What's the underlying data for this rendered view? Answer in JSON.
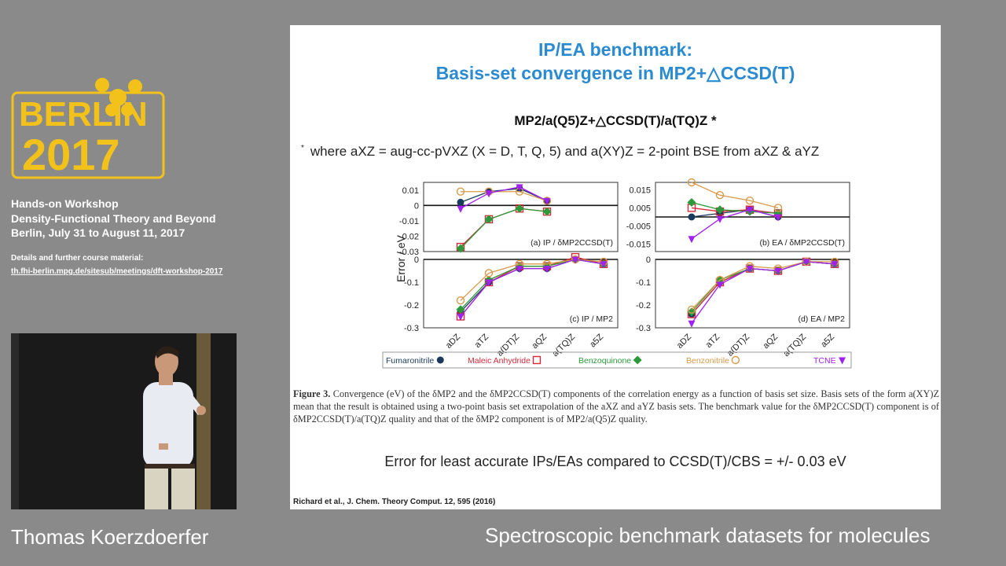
{
  "logo": {
    "line1": "BERLIN",
    "line2": "2017"
  },
  "workshop": {
    "line1": "Hands-on Workshop",
    "line2": "Density-Functional Theory and Beyond",
    "line3": "Berlin, July 31 to August 11, 2017"
  },
  "details": {
    "label": "Details and further course material:",
    "link": "th.fhi-berlin.mpg.de/sitesub/meetings/dft-workshop-2017"
  },
  "speaker": "Thomas Koerzdoerfer",
  "talk_title": "Spectroscopic benchmark datasets for molecules",
  "slide": {
    "title1": "IP/EA benchmark:",
    "title2": "Basis-set convergence in MP2+△CCSD(T)",
    "formula": "MP2/a(Q5)Z+△CCSD(T)/a(TQ)Z *",
    "note_ast": "*",
    "note": "where aXZ = aug-cc-pVXZ (X = D, T, Q, 5)   and   a(XY)Z = 2-point BSE from aXZ & aYZ",
    "ylabel": "Error / eV",
    "caption_head": "Figure 3.",
    "caption": "Convergence (eV) of the δMP2 and the δMP2CCSD(T) components of the correlation energy as a function of basis set size. Basis sets of the form a(XY)Z mean that the result is obtained using a two-point basis set extrapolation of the aXZ and aYZ basis sets. The benchmark value for the δMP2CCSD(T) component is of δMP2CCSD(T)/a(TQ)Z quality and that of the δMP2 component is of MP2/a(Q5)Z quality.",
    "bottom": "Error for least accurate IPs/EAs compared to CCSD(T)/CBS =  +/- 0.03 eV",
    "ref": "Richard et al., J. Chem. Theory Comput. 12, 595 (2016)"
  },
  "chart_data": [
    {
      "type": "line",
      "panel": "(a) IP / δMP2CCSD(T)",
      "categories": [
        "aDZ",
        "aTZ",
        "a(DT)Z",
        "aQZ"
      ],
      "ylim": [
        -0.03,
        0.015
      ],
      "yticks": [
        "0.01",
        "0",
        "-0.01",
        "-0.02",
        "-0.03"
      ],
      "series": [
        {
          "name": "Fumaronitrile",
          "values": [
            0.002,
            0.009,
            0.011,
            0.003
          ]
        },
        {
          "name": "Maleic Anhydride",
          "values": [
            -0.027,
            -0.009,
            -0.002,
            -0.004
          ]
        },
        {
          "name": "Benzoquinone",
          "values": [
            -0.028,
            -0.009,
            -0.002,
            -0.004
          ]
        },
        {
          "name": "Benzonitrile",
          "values": [
            0.009,
            0.009,
            0.009,
            0.003
          ]
        },
        {
          "name": "TCNE",
          "values": [
            -0.002,
            0.008,
            0.012,
            0.003
          ]
        }
      ]
    },
    {
      "type": "line",
      "panel": "(b) EA / δMP2CCSD(T)",
      "categories": [
        "aDZ",
        "aTZ",
        "a(DT)Z",
        "aQZ"
      ],
      "ylim": [
        -0.019,
        0.019
      ],
      "yticks": [
        "0.015",
        "0.005",
        "-0.005",
        "-0.015"
      ],
      "series": [
        {
          "name": "Fumaronitrile",
          "values": [
            0.0,
            0.002,
            0.004,
            0.0
          ]
        },
        {
          "name": "Maleic Anhydride",
          "values": [
            0.005,
            0.003,
            0.004,
            0.002
          ]
        },
        {
          "name": "Benzoquinone",
          "values": [
            0.008,
            0.004,
            0.003,
            0.002
          ]
        },
        {
          "name": "Benzonitrile",
          "values": [
            0.019,
            0.012,
            0.009,
            0.005
          ]
        },
        {
          "name": "TCNE",
          "values": [
            -0.012,
            -0.001,
            0.004,
            0.0
          ]
        }
      ]
    },
    {
      "type": "line",
      "panel": "(c) IP / MP2",
      "categories": [
        "aDZ",
        "aTZ",
        "a(DT)Z",
        "aQZ",
        "a(TQ)Z",
        "a5Z"
      ],
      "ylim": [
        -0.3,
        0.0
      ],
      "yticks": [
        "0",
        "-0.1",
        "-0.2",
        "-0.3"
      ],
      "series": [
        {
          "name": "Fumaronitrile",
          "values": [
            -0.23,
            -0.1,
            -0.04,
            -0.04,
            0.0,
            -0.02
          ]
        },
        {
          "name": "Maleic Anhydride",
          "values": [
            -0.25,
            -0.1,
            -0.03,
            -0.03,
            0.01,
            -0.02
          ]
        },
        {
          "name": "Benzoquinone",
          "values": [
            -0.22,
            -0.09,
            -0.03,
            -0.03,
            0.0,
            -0.02
          ]
        },
        {
          "name": "Benzonitrile",
          "values": [
            -0.18,
            -0.06,
            -0.02,
            -0.02,
            0.0,
            -0.01
          ]
        },
        {
          "name": "TCNE",
          "values": [
            -0.25,
            -0.1,
            -0.04,
            -0.04,
            0.0,
            -0.02
          ]
        }
      ]
    },
    {
      "type": "line",
      "panel": "(d) EA / MP2",
      "categories": [
        "aDZ",
        "aTZ",
        "a(DT)Z",
        "aQZ",
        "a(TQ)Z",
        "a5Z"
      ],
      "ylim": [
        -0.3,
        0.0
      ],
      "yticks": [
        "0",
        "-0.1",
        "-0.2",
        "-0.3"
      ],
      "series": [
        {
          "name": "Fumaronitrile",
          "values": [
            -0.24,
            -0.1,
            -0.04,
            -0.05,
            -0.01,
            -0.02
          ]
        },
        {
          "name": "Maleic Anhydride",
          "values": [
            -0.24,
            -0.1,
            -0.04,
            -0.05,
            -0.01,
            -0.02
          ]
        },
        {
          "name": "Benzoquinone",
          "values": [
            -0.23,
            -0.09,
            -0.04,
            -0.05,
            -0.01,
            -0.02
          ]
        },
        {
          "name": "Benzonitrile",
          "values": [
            -0.22,
            -0.09,
            -0.03,
            -0.04,
            -0.01,
            -0.01
          ]
        },
        {
          "name": "TCNE",
          "values": [
            -0.28,
            -0.11,
            -0.04,
            -0.05,
            -0.01,
            -0.02
          ]
        }
      ]
    }
  ],
  "legend": [
    {
      "name": "Fumaronitrile",
      "color": "#1a3a5c",
      "marker": "circle"
    },
    {
      "name": "Maleic Anhydride",
      "color": "#d62a3a",
      "marker": "square"
    },
    {
      "name": "Benzoquinone",
      "color": "#2c9a3a",
      "marker": "diamond"
    },
    {
      "name": "Benzonitrile",
      "color": "#d89a4a",
      "marker": "circle-open"
    },
    {
      "name": "TCNE",
      "color": "#a020f0",
      "marker": "triangle"
    }
  ]
}
